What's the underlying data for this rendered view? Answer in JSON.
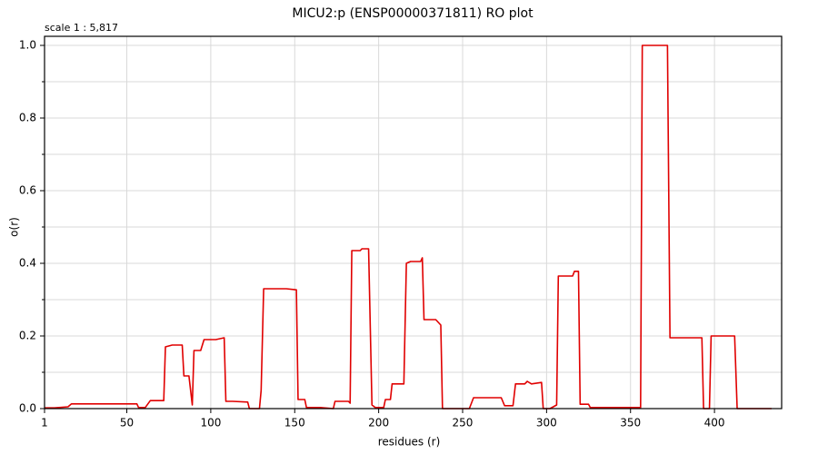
{
  "chart_data": {
    "type": "line",
    "title": "MICU2:p (ENSP00000371811) RO plot",
    "annotation": "scale 1 : 5,817",
    "x_label": "residues (r)",
    "y_label": "o(r)",
    "xlim": [
      1,
      440
    ],
    "ylim": [
      0,
      1.025
    ],
    "xticks": [
      1,
      50,
      100,
      150,
      200,
      250,
      300,
      350,
      400
    ],
    "yticks": [
      {
        "value": 0,
        "label": "0.0"
      },
      0.2,
      0.4,
      0.6,
      0.8,
      {
        "value": 1,
        "label": "1.0"
      }
    ],
    "yminor_ticks": [
      0.1,
      0.3,
      0.5,
      0.7,
      0.9
    ],
    "grid": true,
    "series": [
      {
        "name": "RO",
        "color": "#e00000",
        "x": [
          1,
          7,
          15,
          17,
          56,
          57,
          61,
          64,
          72,
          73,
          77,
          83,
          84,
          87,
          89,
          90,
          94,
          96,
          103,
          108,
          109,
          113,
          122,
          123,
          129,
          130,
          131.5,
          145,
          151,
          152,
          156,
          157,
          165,
          173,
          174,
          182,
          183,
          184,
          189,
          190,
          194,
          196,
          198,
          203,
          204,
          207,
          208,
          215,
          216.5,
          219,
          225,
          226,
          227,
          234,
          237,
          238,
          254,
          256.5,
          273,
          275,
          280,
          281.5,
          287,
          288.5,
          291,
          297,
          298,
          302,
          306,
          307,
          315.5,
          316.6,
          319,
          320,
          325,
          326,
          356,
          357,
          372,
          373.5,
          392.5,
          393.5,
          397,
          398,
          412,
          413.5,
          434
        ],
        "values": [
          0.002,
          0.002,
          0.005,
          0.013,
          0.013,
          0.003,
          0.003,
          0.022,
          0.022,
          0.17,
          0.175,
          0.175,
          0.09,
          0.09,
          0.01,
          0.16,
          0.16,
          0.19,
          0.19,
          0.195,
          0.02,
          0.02,
          0.018,
          0,
          0,
          0.05,
          0.33,
          0.33,
          0.327,
          0.025,
          0.025,
          0.003,
          0.003,
          0,
          0.02,
          0.02,
          0.015,
          0.435,
          0.435,
          0.44,
          0.44,
          0.01,
          0.003,
          0.003,
          0.025,
          0.025,
          0.068,
          0.068,
          0.4,
          0.405,
          0.405,
          0.415,
          0.245,
          0.245,
          0.23,
          0,
          0,
          0.03,
          0.03,
          0.008,
          0.008,
          0.068,
          0.068,
          0.075,
          0.068,
          0.072,
          0,
          0,
          0.01,
          0.365,
          0.365,
          0.378,
          0.378,
          0.012,
          0.012,
          0.003,
          0.003,
          1.0,
          1.0,
          0.195,
          0.195,
          0,
          0,
          0.2,
          0.2,
          0,
          0
        ]
      }
    ]
  }
}
